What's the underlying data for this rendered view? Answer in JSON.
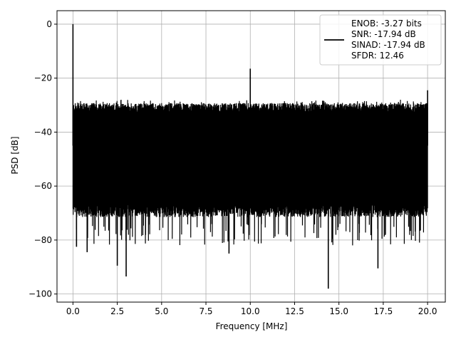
{
  "chart_data": {
    "type": "line",
    "xlabel": "Frequency [MHz]",
    "ylabel": "PSD [dB]",
    "xlim": [
      -0.9,
      21.0
    ],
    "ylim": [
      -103,
      5
    ],
    "grid": true,
    "x_ticks": [
      0,
      2.5,
      5,
      7.5,
      10,
      12.5,
      15,
      17.5,
      20
    ],
    "x_tick_labels": [
      "0.0",
      "2.5",
      "5.0",
      "7.5",
      "10.0",
      "12.5",
      "15.0",
      "17.5",
      "20.0"
    ],
    "y_ticks": [
      0,
      -20,
      -40,
      -60,
      -80,
      -100
    ],
    "y_tick_labels": [
      "0",
      "−20",
      "−40",
      "−60",
      "−80",
      "−100"
    ],
    "legend": {
      "placement": "top-right",
      "lines": [
        "ENOB: -3.27 bits",
        "SNR: -17.94 dB",
        "SINAD: -17.94 dB",
        "SFDR: 12.46"
      ]
    },
    "series": [
      {
        "color": "#000000",
        "x_range": [
          0,
          20
        ],
        "noise_band": {
          "upper_typical": -31,
          "upper_range": [
            -33,
            -28
          ],
          "lower_typical": -70,
          "lower_range": [
            -98,
            -67
          ]
        },
        "peaks": [
          {
            "x": 0.0,
            "y": 0
          },
          {
            "x": 10.0,
            "y": -16.5
          },
          {
            "x": 20.0,
            "y": -24.5
          }
        ],
        "deep_notches": [
          {
            "x": 0.2,
            "y": -82.5
          },
          {
            "x": 0.8,
            "y": -84.5
          },
          {
            "x": 2.5,
            "y": -89.5
          },
          {
            "x": 3.0,
            "y": -93.5
          },
          {
            "x": 8.8,
            "y": -85
          },
          {
            "x": 14.4,
            "y": -98
          },
          {
            "x": 17.2,
            "y": -90.5
          }
        ]
      }
    ]
  }
}
